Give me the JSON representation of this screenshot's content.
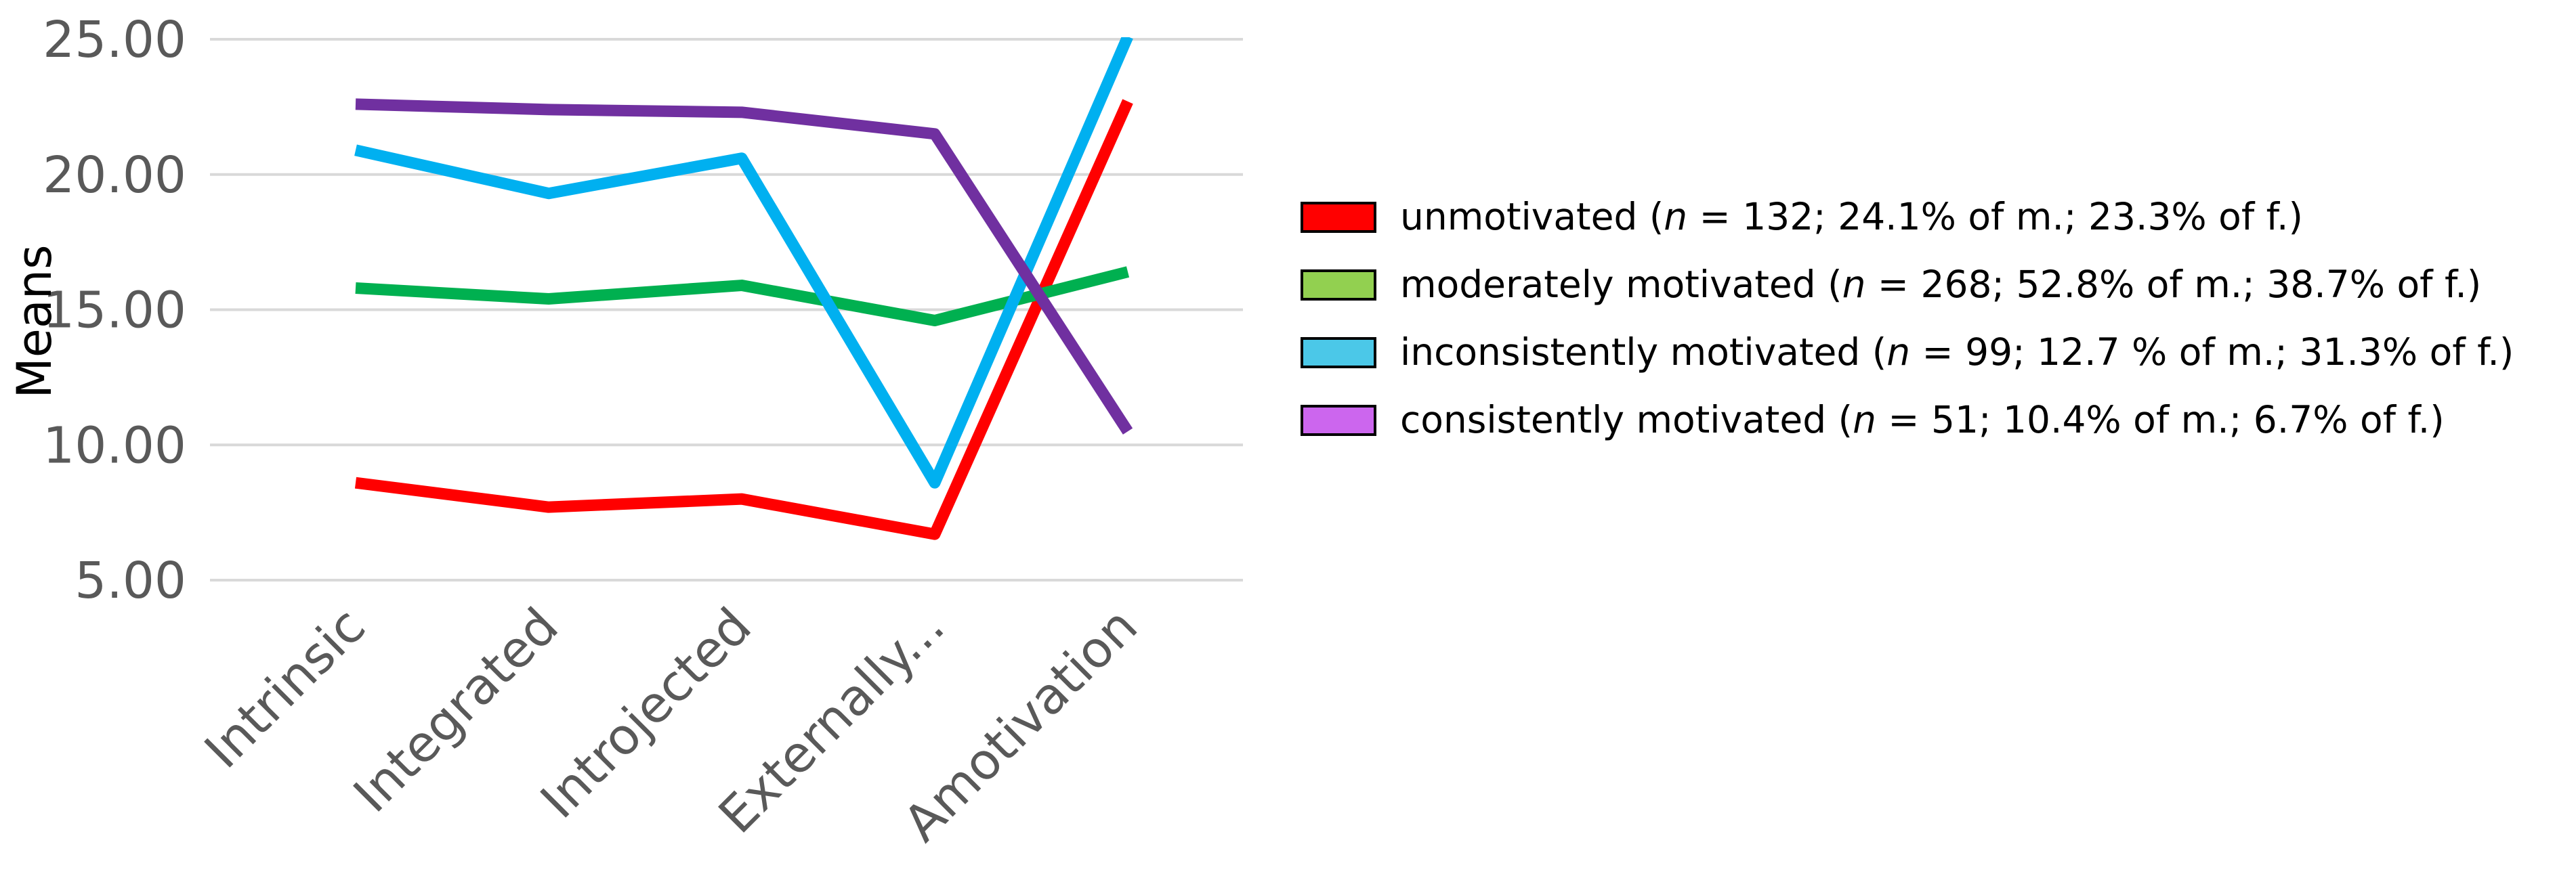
{
  "chart_data": {
    "type": "line",
    "title": "",
    "xlabel": "",
    "ylabel": "Means",
    "ylim": [
      5,
      25
    ],
    "yticks": [
      "5.00",
      "10.00",
      "15.00",
      "20.00",
      "25.00"
    ],
    "ytick_values": [
      5,
      10,
      15,
      20,
      25
    ],
    "grid": true,
    "legend_position": "right",
    "categories": [
      "Intrinsic",
      "Integrated",
      "Introjected",
      "Externally...",
      "Amotivation"
    ],
    "series": [
      {
        "name": "unmotivated",
        "label_pre": "unmotivated (",
        "label_n": "n",
        "label_post": " = 132; 24.1% of m.; 23.3% of f.)",
        "color": "#ff0000",
        "swatch": "#ff0000",
        "values": [
          8.6,
          7.7,
          8.0,
          6.7,
          22.7
        ]
      },
      {
        "name": "moderately motivated",
        "label_pre": "moderately motivated (",
        "label_n": "n",
        "label_post": " = 268; 52.8% of m.; 38.7% of f.)",
        "color": "#00b050",
        "swatch": "#92d050",
        "values": [
          15.8,
          15.4,
          15.9,
          14.6,
          16.4
        ]
      },
      {
        "name": "inconsistently motivated",
        "label_pre": "inconsistently motivated (",
        "label_n": "n",
        "label_post": " = 99; 12.7 % of m.; 31.3% of f.)",
        "color": "#00b0f0",
        "swatch": "#4bc8e8",
        "values": [
          20.9,
          19.3,
          20.6,
          8.6,
          25.1
        ]
      },
      {
        "name": "consistently motivated",
        "label_pre": "consistently motivated (",
        "label_n": "n",
        "label_post": " = 51; 10.4% of m.; 6.7% of f.)",
        "color": "#7030a0",
        "swatch": "#cc66ee",
        "values": [
          22.6,
          22.4,
          22.3,
          21.5,
          10.5
        ]
      }
    ]
  }
}
